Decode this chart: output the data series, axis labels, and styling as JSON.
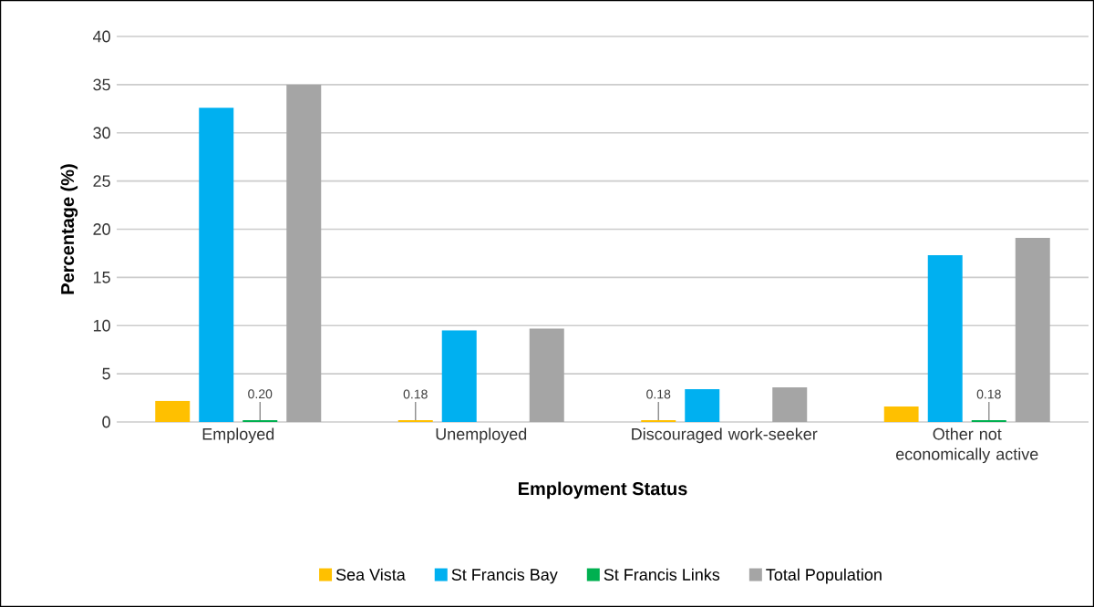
{
  "chart_data": {
    "type": "bar",
    "xlabel": "Employment Status",
    "ylabel": "Percentage (%)",
    "categories": [
      "Employed",
      "Unemployed",
      "Discouraged work-seeker",
      "Other not economically active"
    ],
    "series": [
      {
        "name": "Sea Vista",
        "color": "#ffc000",
        "values": [
          2.2,
          0.18,
          0.18,
          1.6
        ],
        "value_labels": [
          null,
          "0.18",
          "0.18",
          null
        ]
      },
      {
        "name": "St Francis Bay",
        "color": "#00b0f0",
        "values": [
          32.6,
          9.5,
          3.4,
          17.3
        ]
      },
      {
        "name": "St Francis Links",
        "color": "#00b050",
        "values": [
          0.2,
          null,
          null,
          0.18
        ],
        "value_labels": [
          "0.20",
          null,
          null,
          "0.18"
        ]
      },
      {
        "name": "Total Population",
        "color": "#a5a5a5",
        "values": [
          35.0,
          9.7,
          3.6,
          19.1
        ]
      }
    ],
    "ylim": [
      0,
      40
    ],
    "yticks": [
      0,
      5,
      10,
      15,
      20,
      25,
      30,
      35,
      40
    ],
    "grid": "y",
    "legend": "bottom"
  }
}
